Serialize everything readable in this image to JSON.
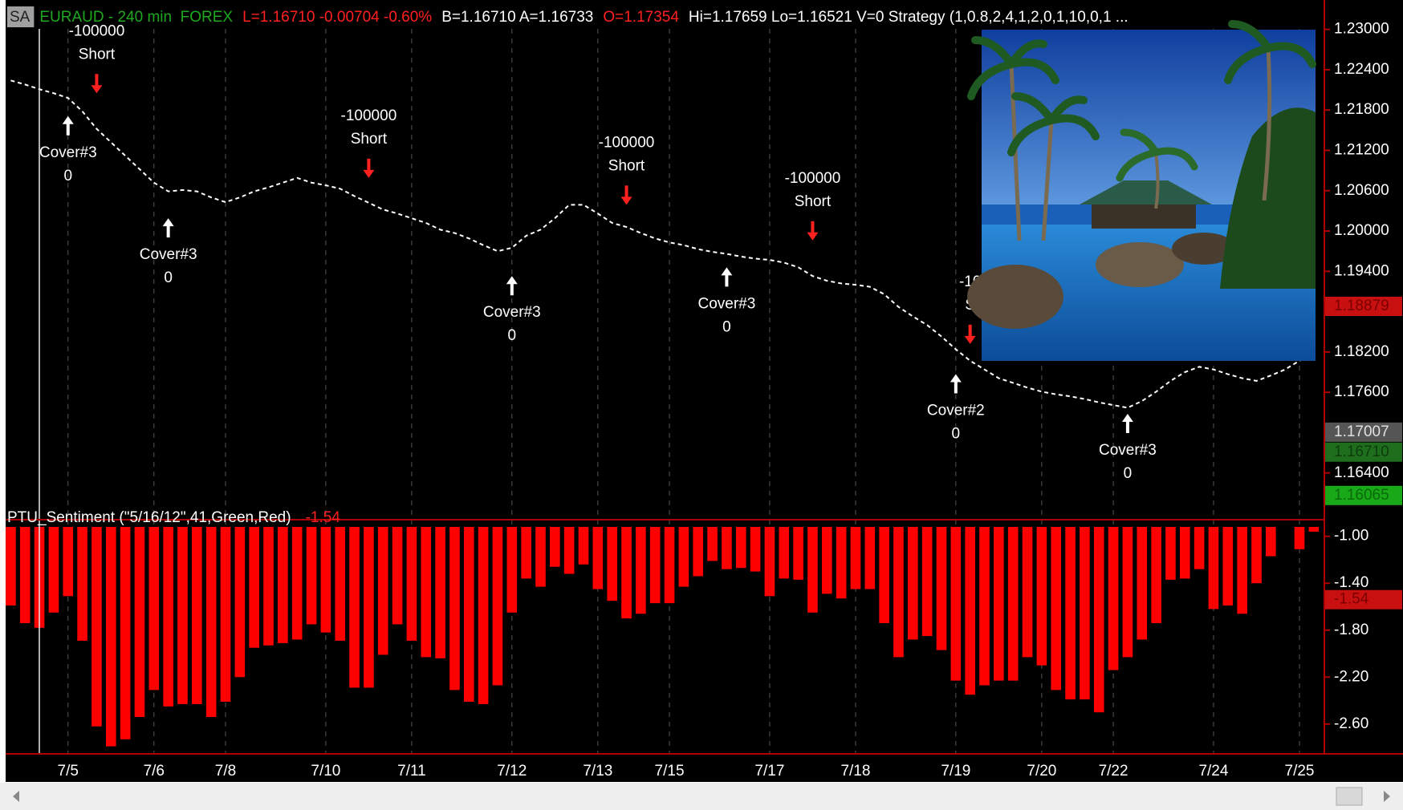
{
  "chart_data": [
    {
      "type": "line",
      "header": [
        {
          "text": "SA",
          "color": "#222222",
          "background": "#a0a0a0"
        },
        {
          "text": "EURAUD - 240 min  FOREX",
          "color": "#1fa81f"
        },
        {
          "text": "L=1.16710 -0.00704 -0.60%",
          "color": "#ff2020"
        },
        {
          "text": "B=1.16710 A=1.16733",
          "color": "#ffffff"
        },
        {
          "text": "O=1.17354",
          "color": "#ff2020"
        },
        {
          "text": "Hi=1.17659 Lo=1.16521 V=0 Strategy (1,0.8,2,4,1,2,0,1,10,0,1 ...",
          "color": "#ffffff"
        }
      ],
      "categories": [
        null,
        null,
        null,
        null,
        "7/5",
        null,
        null,
        null,
        null,
        null,
        "7/6",
        null,
        null,
        null,
        null,
        "7/8",
        null,
        null,
        null,
        null,
        null,
        null,
        "7/10",
        null,
        null,
        null,
        null,
        null,
        "7/11",
        null,
        null,
        null,
        null,
        null,
        null,
        "7/12",
        null,
        null,
        null,
        null,
        null,
        "7/13",
        null,
        null,
        null,
        null,
        "7/15",
        null,
        null,
        null,
        null,
        null,
        null,
        "7/17",
        null,
        null,
        null,
        null,
        null,
        "7/18",
        null,
        null,
        null,
        null,
        null,
        null,
        "7/19",
        null,
        null,
        null,
        null,
        null,
        "7/20",
        null,
        null,
        null,
        null,
        "7/22",
        null,
        null,
        null,
        null,
        null,
        null,
        "7/24",
        null,
        null,
        null,
        null,
        null,
        "7/25",
        null
      ],
      "values": [
        1.2224,
        1.2218,
        1.2211,
        1.2205,
        1.2198,
        1.2178,
        1.2152,
        1.2132,
        1.2112,
        1.2092,
        1.2072,
        1.2059,
        1.2061,
        1.2059,
        1.205,
        1.2043,
        1.205,
        1.2059,
        1.2065,
        1.2072,
        1.2079,
        1.2072,
        1.2068,
        1.2063,
        1.2052,
        1.2042,
        1.2032,
        1.2026,
        1.2019,
        1.2012,
        1.2002,
        1.1997,
        1.1989,
        1.1979,
        1.197,
        1.1975,
        1.1993,
        1.2002,
        1.2019,
        1.2039,
        1.2039,
        1.2026,
        1.2012,
        1.2006,
        1.1997,
        1.1989,
        1.1983,
        1.1979,
        1.1973,
        1.1969,
        1.1966,
        1.1962,
        1.1959,
        1.1957,
        1.1953,
        1.1946,
        1.1933,
        1.1926,
        1.1922,
        1.192,
        1.1917,
        1.1906,
        1.1887,
        1.1873,
        1.186,
        1.1843,
        1.1824,
        1.1807,
        1.1794,
        1.1781,
        1.1774,
        1.1767,
        1.1761,
        1.1757,
        1.1754,
        1.175,
        1.1745,
        1.1741,
        1.1737,
        1.1747,
        1.1761,
        1.1777,
        1.179,
        1.1798,
        1.1794,
        1.1787,
        1.1781,
        1.1777,
        1.1785,
        1.1794,
        1.1807,
        1.1816
      ],
      "color": "#ffffff",
      "ylim": [
        1.1586,
        1.2333
      ],
      "yticks": [
        {
          "value": 1.23,
          "label": "1.23000"
        },
        {
          "value": 1.224,
          "label": "1.22400"
        },
        {
          "value": 1.218,
          "label": "1.21800"
        },
        {
          "value": 1.212,
          "label": "1.21200"
        },
        {
          "value": 1.206,
          "label": "1.20600"
        },
        {
          "value": 1.2,
          "label": "1.20000"
        },
        {
          "value": 1.194,
          "label": "1.19400"
        },
        {
          "value": 1.182,
          "label": "1.18200"
        },
        {
          "value": 1.176,
          "label": "1.17600"
        },
        {
          "value": 1.164,
          "label": "1.16400"
        }
      ],
      "markers": [
        {
          "value": 1.18879,
          "label": "1.18879",
          "color": "#c81010",
          "text_color": "#7a0000"
        },
        {
          "value": 1.17007,
          "label": "1.17007",
          "color": "#555555",
          "text_color": "#e0e0e0"
        },
        {
          "value": 1.1671,
          "label": "1.16710",
          "color": "#1e6e1e",
          "text_color": "#0d3d0d"
        },
        {
          "value": 1.16065,
          "label": "1.16065",
          "color": "#18a818",
          "text_color": "#0a6a0a"
        }
      ],
      "signals": [
        {
          "lines": [
            "-100000",
            "Short"
          ],
          "arrow": "down",
          "bar": 6,
          "price": 1.2205
        },
        {
          "lines": [
            "Cover#3",
            "0"
          ],
          "arrow": "up",
          "bar": 4,
          "price": 1.2171
        },
        {
          "lines": [
            "Cover#3",
            "0"
          ],
          "arrow": "up",
          "bar": 11,
          "price": 1.2019
        },
        {
          "lines": [
            "-100000",
            "Short"
          ],
          "arrow": "down",
          "bar": 25,
          "price": 1.2079
        },
        {
          "lines": [
            "Cover#3",
            "0"
          ],
          "arrow": "up",
          "bar": 35,
          "price": 1.1933
        },
        {
          "lines": [
            "-100000",
            "Short"
          ],
          "arrow": "down",
          "bar": 43,
          "price": 1.2039
        },
        {
          "lines": [
            "Cover#3",
            "0"
          ],
          "arrow": "up",
          "bar": 50,
          "price": 1.1946
        },
        {
          "lines": [
            "-100000",
            "Short"
          ],
          "arrow": "down",
          "bar": 56,
          "price": 1.1986
        },
        {
          "lines": [
            "-10",
            "S"
          ],
          "arrow": "down",
          "bar": 67,
          "price": 1.1832
        },
        {
          "lines": [
            "Cover#2",
            "0"
          ],
          "arrow": "up",
          "bar": 66,
          "price": 1.1787
        },
        {
          "lines": [
            "Cover#3",
            "0"
          ],
          "arrow": "up",
          "bar": 78,
          "price": 1.1728
        }
      ]
    },
    {
      "type": "bar",
      "title": "PTU_Sentiment (\"5/16/12\",41,Green,Red)",
      "title_value": -1.54,
      "values": [
        -1.59,
        -1.74,
        -1.78,
        -1.65,
        -1.51,
        -1.89,
        -2.62,
        -2.79,
        -2.73,
        -2.54,
        -2.31,
        -2.45,
        -2.43,
        -2.43,
        -2.54,
        -2.41,
        -2.2,
        -1.95,
        -1.93,
        -1.91,
        -1.88,
        -1.75,
        -1.82,
        -1.89,
        -2.29,
        -2.29,
        -2.01,
        -1.75,
        -1.89,
        -2.03,
        -2.04,
        -2.31,
        -2.41,
        -2.43,
        -2.27,
        -1.65,
        -1.36,
        -1.43,
        -1.26,
        -1.32,
        -1.24,
        -1.45,
        -1.55,
        -1.7,
        -1.66,
        -1.57,
        -1.57,
        -1.43,
        -1.34,
        -1.21,
        -1.28,
        -1.27,
        -1.3,
        -1.51,
        -1.36,
        -1.37,
        -1.65,
        -1.49,
        -1.53,
        -1.45,
        -1.45,
        -1.74,
        -2.03,
        -1.88,
        -1.85,
        -1.97,
        -2.23,
        -2.35,
        -2.27,
        -2.23,
        -2.23,
        -2.03,
        -2.1,
        -2.31,
        -2.39,
        -2.39,
        -2.5,
        -2.14,
        -2.03,
        -1.88,
        -1.74,
        -1.37,
        -1.36,
        -1.28,
        -1.62,
        -1.59,
        -1.66,
        -1.4,
        -1.17,
        null,
        -1.11,
        -0.96
      ],
      "color": "#ff0000",
      "ylim": [
        -2.82,
        -0.92
      ],
      "yticks": [
        {
          "value": -1.0,
          "label": "-1.00"
        },
        {
          "value": -1.4,
          "label": "-1.40"
        },
        {
          "value": -1.8,
          "label": "-1.80"
        },
        {
          "value": -2.2,
          "label": "-2.20"
        },
        {
          "value": -2.6,
          "label": "-2.60"
        }
      ],
      "markers": [
        {
          "value": -1.54,
          "label": "-1.54",
          "color": "#c81010",
          "text_color": "#7a0000"
        }
      ]
    }
  ]
}
